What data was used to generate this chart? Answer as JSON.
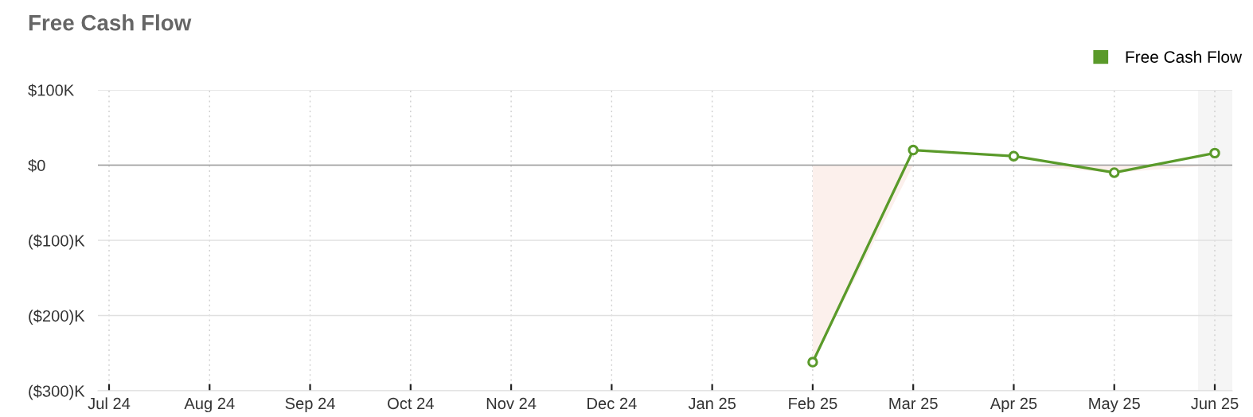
{
  "chart_data": {
    "type": "line",
    "title": "Free Cash Flow",
    "categories": [
      "Jul 24",
      "Aug 24",
      "Sep 24",
      "Oct 24",
      "Nov 24",
      "Dec 24",
      "Jan 25",
      "Feb 25",
      "Mar 25",
      "Apr 25",
      "May 25",
      "Jun 25"
    ],
    "series": [
      {
        "type": "area",
        "color": "#fcf0ec",
        "marker": "none",
        "values": [
          null,
          null,
          null,
          null,
          null,
          null,
          null,
          -262,
          0,
          0,
          -10,
          0
        ]
      },
      {
        "name": "Free Cash Flow",
        "color": "#5a9a2a",
        "values": [
          null,
          null,
          null,
          null,
          null,
          null,
          null,
          -262,
          20,
          12,
          -10,
          16
        ]
      }
    ],
    "ylim": [
      -300,
      100
    ],
    "yticks": [
      {
        "value": 100,
        "label": "$100K"
      },
      {
        "value": 0,
        "label": "$0"
      },
      {
        "value": -100,
        "label": "($100)K"
      },
      {
        "value": -200,
        "label": "($200)K"
      },
      {
        "value": -300,
        "label": "($300)K"
      }
    ],
    "grid": true,
    "legend": "top right",
    "marker": "circle",
    "line_style": "solid",
    "ref_lines": [
      {
        "axis": "y",
        "value": 0,
        "color": "#9a9a9a"
      }
    ],
    "bands": [
      {
        "axis": "x",
        "from": "Jun 25",
        "to": "Jun 25",
        "color": "#f5f5f5"
      }
    ]
  }
}
